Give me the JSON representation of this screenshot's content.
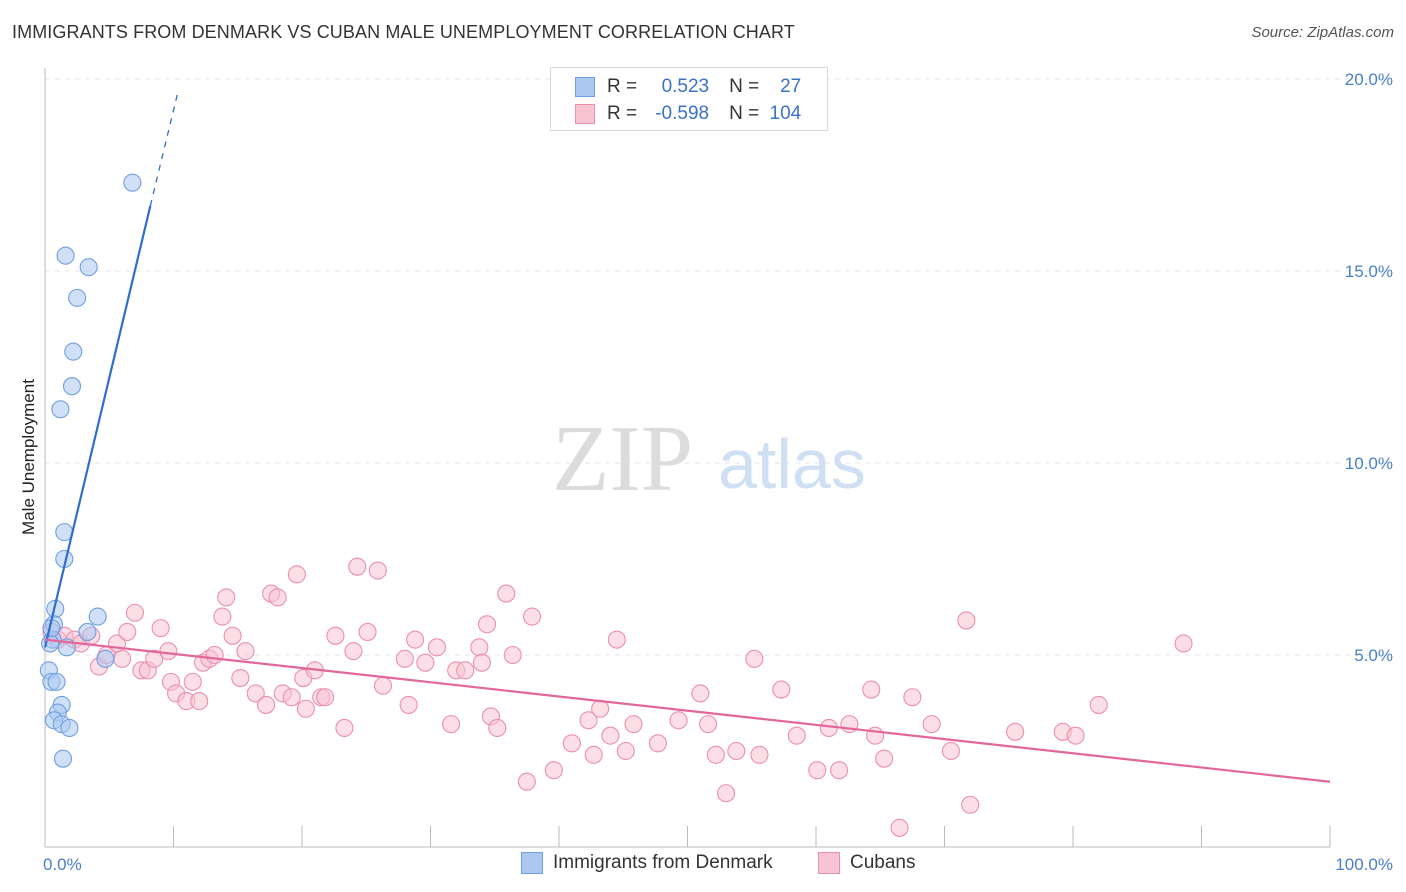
{
  "title": "IMMIGRANTS FROM DENMARK VS CUBAN MALE UNEMPLOYMENT CORRELATION CHART",
  "source": "Source: ZipAtlas.com",
  "watermark": {
    "zip": "ZIP",
    "atlas": "atlas"
  },
  "legend": {
    "rows": [
      {
        "r_label": "R =",
        "r_value": "0.523",
        "n_label": "N =",
        "n_value": "27"
      },
      {
        "r_label": "R =",
        "r_value": "-0.598",
        "n_label": "N =",
        "n_value": "104"
      }
    ]
  },
  "series_labels": {
    "denmark": "Immigrants from Denmark",
    "cubans": "Cubans"
  },
  "colors": {
    "denmark_fill": "#aac8f0",
    "denmark_stroke": "#6f9ee0",
    "denmark_line": "#2f6fcc",
    "cubans_fill": "#f8c3d2",
    "cubans_stroke": "#eb8fae",
    "cubans_line": "#e3679a",
    "axis_text": "#4a7fc8"
  },
  "chart_data": {
    "type": "scatter",
    "title": "IMMIGRANTS FROM DENMARK VS CUBAN MALE UNEMPLOYMENT CORRELATION CHART",
    "xlabel": "",
    "ylabel": "Male Unemployment",
    "xlim": [
      0,
      100
    ],
    "ylim": [
      0,
      20
    ],
    "x_tick_labels": [
      "0.0%",
      "100.0%"
    ],
    "y_ticks": [
      5,
      10,
      15,
      20
    ],
    "y_tick_labels": [
      "5.0%",
      "10.0%",
      "15.0%",
      "20.0%"
    ],
    "series": [
      {
        "name": "Immigrants from Denmark",
        "r": 0.523,
        "n": 27,
        "trend": {
          "x0": 0.0,
          "y0": 5.2,
          "x1": 8.2,
          "y1": 16.7,
          "dash_to_x": 10.3,
          "dash_to_y": 19.6
        },
        "points": [
          [
            6.8,
            17.3
          ],
          [
            1.6,
            15.4
          ],
          [
            3.4,
            15.1
          ],
          [
            2.5,
            14.3
          ],
          [
            2.2,
            12.9
          ],
          [
            2.1,
            12.0
          ],
          [
            1.2,
            11.4
          ],
          [
            1.5,
            8.2
          ],
          [
            1.5,
            7.5
          ],
          [
            0.8,
            6.2
          ],
          [
            4.1,
            6.0
          ],
          [
            0.7,
            5.8
          ],
          [
            0.6,
            5.4
          ],
          [
            3.3,
            5.6
          ],
          [
            1.7,
            5.2
          ],
          [
            0.4,
            5.3
          ],
          [
            4.7,
            4.9
          ],
          [
            0.3,
            4.6
          ],
          [
            0.5,
            4.3
          ],
          [
            0.9,
            4.3
          ],
          [
            1.3,
            3.7
          ],
          [
            1.0,
            3.5
          ],
          [
            0.7,
            3.3
          ],
          [
            1.3,
            3.2
          ],
          [
            1.9,
            3.1
          ],
          [
            1.4,
            2.3
          ],
          [
            0.5,
            5.7
          ]
        ]
      },
      {
        "name": "Cubans",
        "r": -0.598,
        "n": 104,
        "trend": {
          "x0": 0.0,
          "y0": 5.4,
          "x1": 100.0,
          "y1": 1.7
        },
        "points": [
          [
            0.5,
            5.6
          ],
          [
            1.0,
            5.4
          ],
          [
            1.5,
            5.5
          ],
          [
            2.3,
            5.4
          ],
          [
            2.8,
            5.3
          ],
          [
            3.6,
            5.5
          ],
          [
            4.2,
            4.7
          ],
          [
            4.8,
            5.0
          ],
          [
            5.6,
            5.3
          ],
          [
            6.0,
            4.9
          ],
          [
            6.4,
            5.6
          ],
          [
            7.0,
            6.1
          ],
          [
            7.5,
            4.6
          ],
          [
            8.0,
            4.6
          ],
          [
            8.5,
            4.9
          ],
          [
            9.0,
            5.7
          ],
          [
            9.6,
            5.1
          ],
          [
            9.8,
            4.3
          ],
          [
            10.2,
            4.0
          ],
          [
            11.0,
            3.8
          ],
          [
            11.5,
            4.3
          ],
          [
            12.0,
            3.8
          ],
          [
            12.3,
            4.8
          ],
          [
            12.8,
            4.9
          ],
          [
            13.2,
            5.0
          ],
          [
            13.8,
            6.0
          ],
          [
            14.1,
            6.5
          ],
          [
            14.6,
            5.5
          ],
          [
            15.2,
            4.4
          ],
          [
            15.6,
            5.1
          ],
          [
            16.4,
            4.0
          ],
          [
            17.2,
            3.7
          ],
          [
            17.6,
            6.6
          ],
          [
            18.1,
            6.5
          ],
          [
            18.5,
            4.0
          ],
          [
            19.2,
            3.9
          ],
          [
            19.6,
            7.1
          ],
          [
            20.1,
            4.4
          ],
          [
            20.3,
            3.6
          ],
          [
            21.0,
            4.6
          ],
          [
            21.5,
            3.9
          ],
          [
            21.8,
            3.9
          ],
          [
            22.6,
            5.5
          ],
          [
            23.3,
            3.1
          ],
          [
            24.0,
            5.1
          ],
          [
            24.3,
            7.3
          ],
          [
            25.1,
            5.6
          ],
          [
            25.9,
            7.2
          ],
          [
            26.3,
            4.2
          ],
          [
            28.0,
            4.9
          ],
          [
            28.3,
            3.7
          ],
          [
            28.8,
            5.4
          ],
          [
            29.6,
            4.8
          ],
          [
            30.5,
            5.2
          ],
          [
            31.6,
            3.2
          ],
          [
            32.0,
            4.6
          ],
          [
            32.7,
            4.6
          ],
          [
            33.8,
            5.2
          ],
          [
            34.4,
            5.8
          ],
          [
            34.7,
            3.4
          ],
          [
            35.2,
            3.1
          ],
          [
            35.9,
            6.6
          ],
          [
            36.4,
            5.0
          ],
          [
            37.5,
            1.7
          ],
          [
            37.9,
            6.0
          ],
          [
            39.6,
            2.0
          ],
          [
            41.0,
            2.7
          ],
          [
            42.3,
            3.3
          ],
          [
            42.7,
            2.4
          ],
          [
            43.2,
            3.6
          ],
          [
            44.0,
            2.9
          ],
          [
            44.5,
            5.4
          ],
          [
            45.2,
            2.5
          ],
          [
            45.8,
            3.2
          ],
          [
            47.7,
            2.7
          ],
          [
            49.3,
            3.3
          ],
          [
            51.0,
            4.0
          ],
          [
            51.6,
            3.2
          ],
          [
            52.2,
            2.4
          ],
          [
            53.0,
            1.4
          ],
          [
            53.8,
            2.5
          ],
          [
            55.2,
            4.9
          ],
          [
            55.6,
            2.4
          ],
          [
            57.3,
            4.1
          ],
          [
            58.5,
            2.9
          ],
          [
            60.1,
            2.0
          ],
          [
            61.0,
            3.1
          ],
          [
            61.8,
            2.0
          ],
          [
            62.6,
            3.2
          ],
          [
            64.3,
            4.1
          ],
          [
            64.6,
            2.9
          ],
          [
            66.5,
            0.5
          ],
          [
            67.5,
            3.9
          ],
          [
            69.0,
            3.2
          ],
          [
            70.5,
            2.5
          ],
          [
            71.7,
            5.9
          ],
          [
            72.0,
            1.1
          ],
          [
            75.5,
            3.0
          ],
          [
            79.2,
            3.0
          ],
          [
            80.2,
            2.9
          ],
          [
            82.0,
            3.7
          ],
          [
            65.3,
            2.3
          ],
          [
            88.6,
            5.3
          ],
          [
            34.0,
            4.8
          ]
        ]
      }
    ]
  }
}
